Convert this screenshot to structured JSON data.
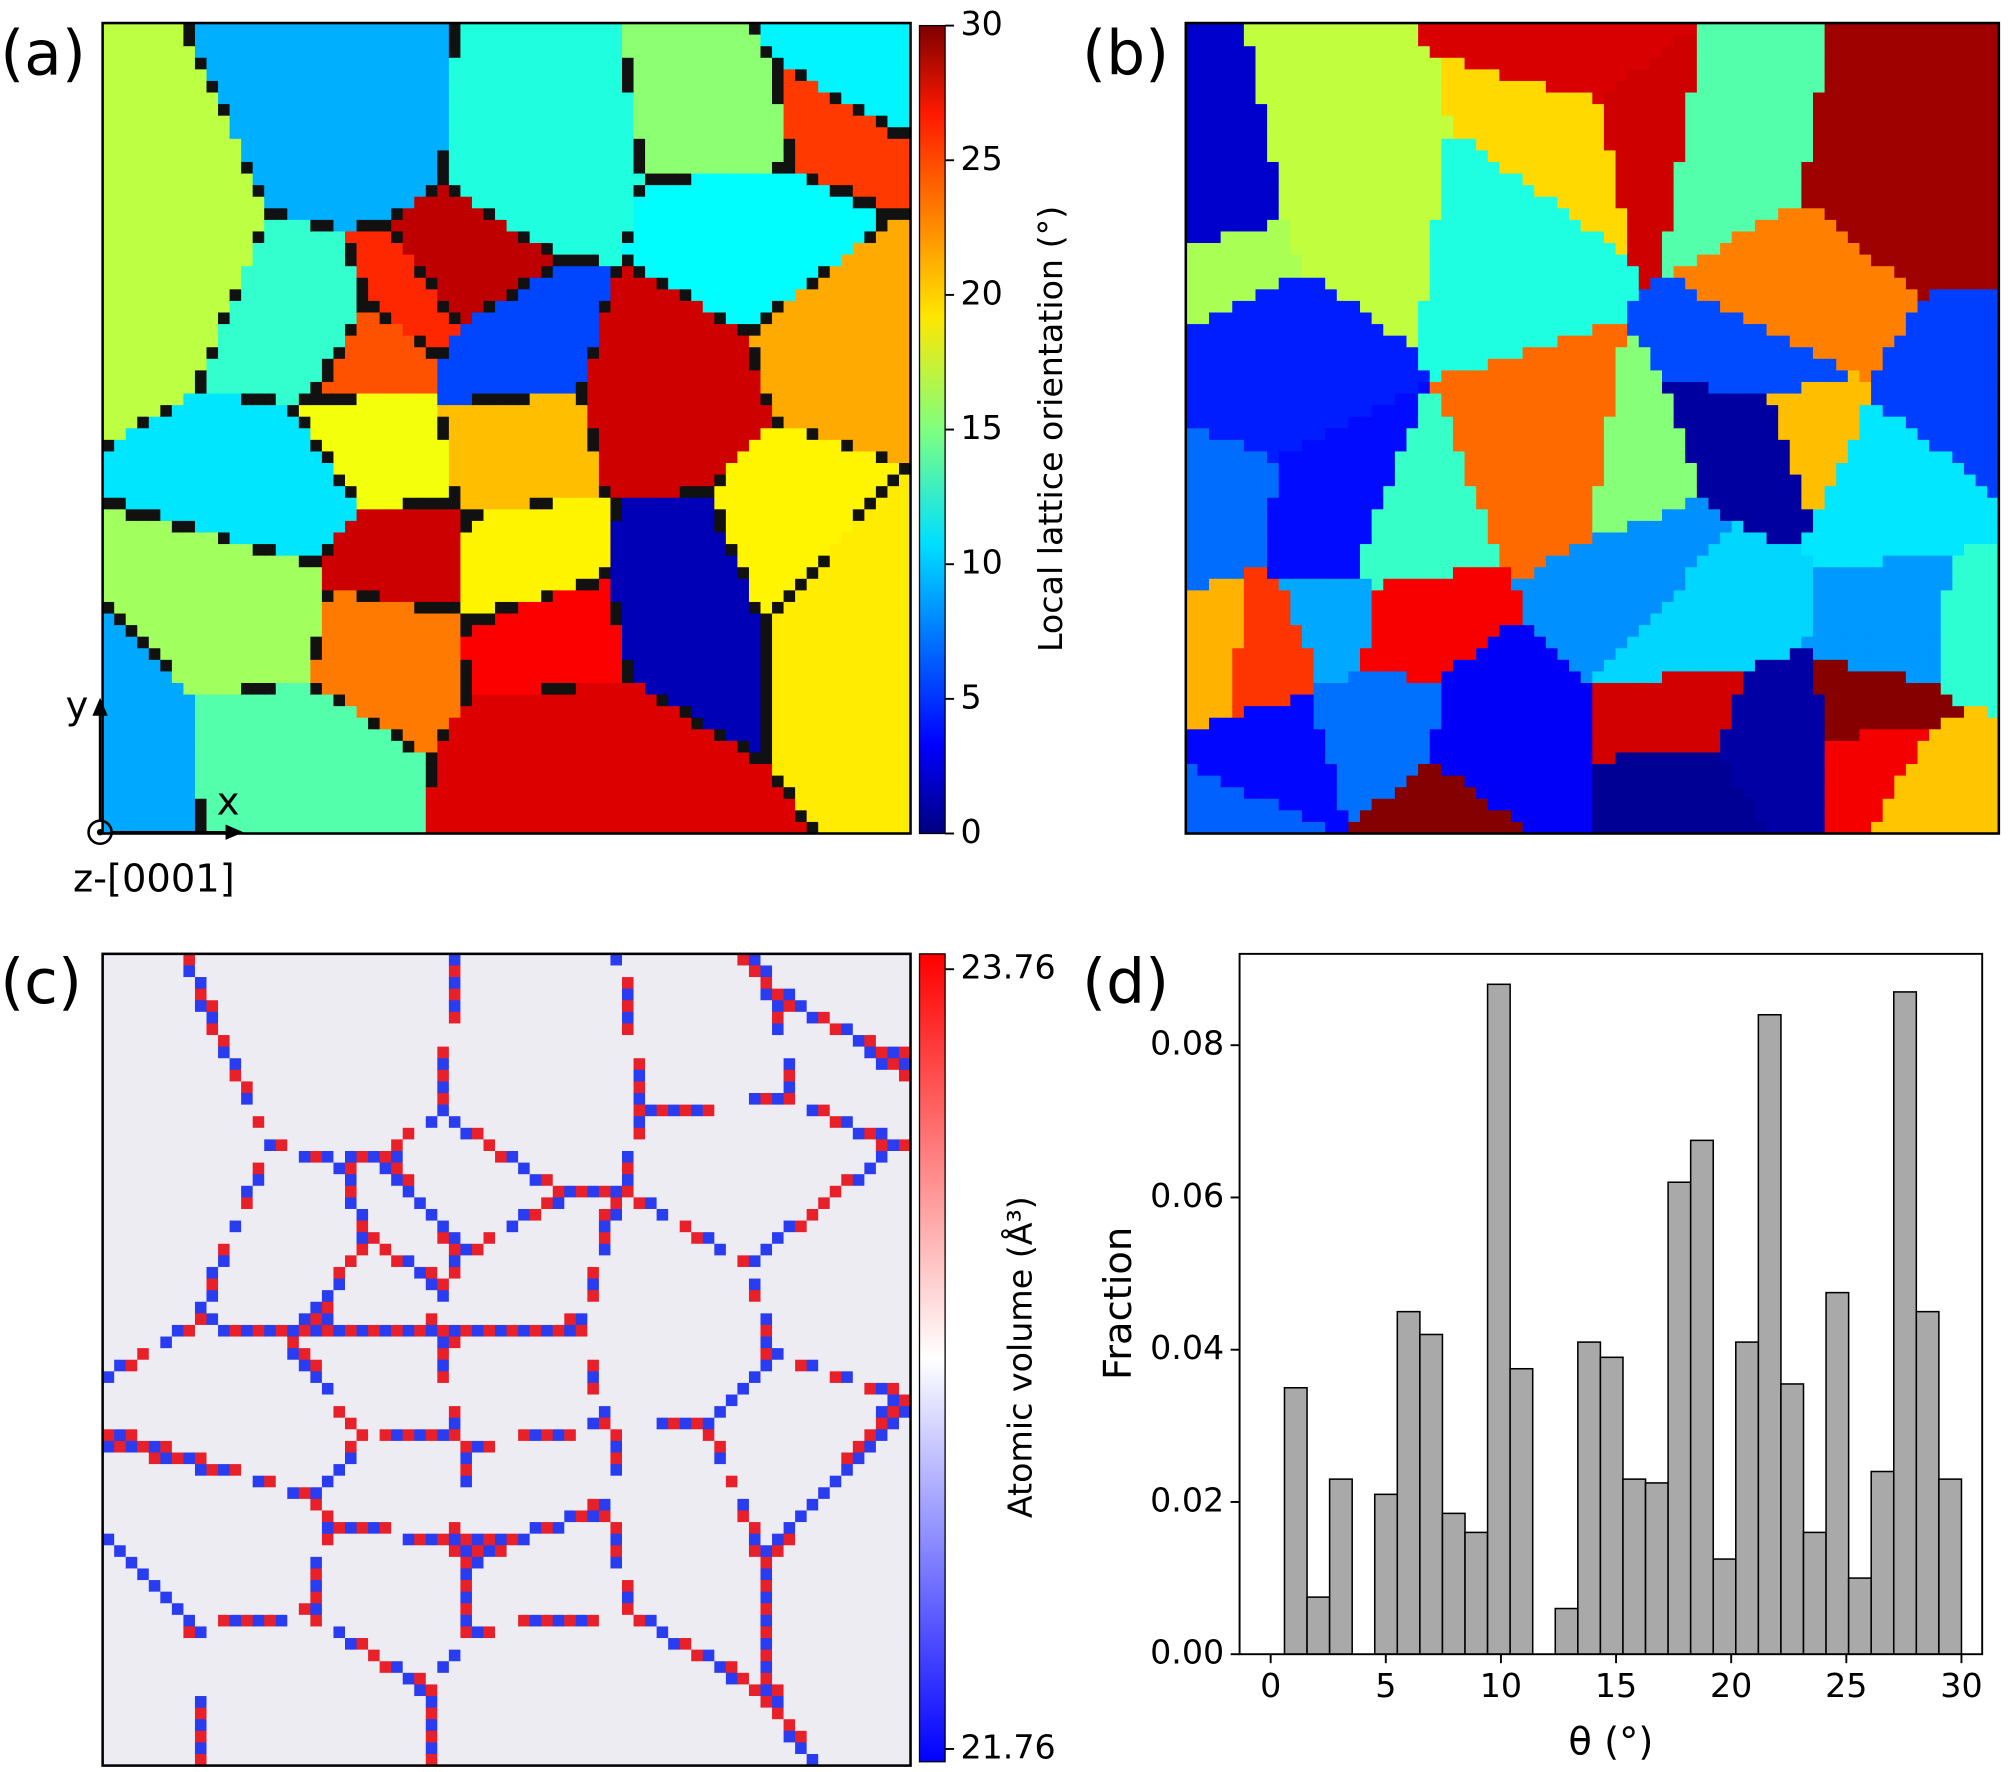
{
  "chart_data": [
    {
      "type": "orientation-map",
      "label": "(a)",
      "x_label": "x",
      "y_label": "y",
      "z_label": "z-[0001]",
      "colorbar_label": "Local lattice orientation (°)",
      "clim": [
        0,
        30
      ],
      "cticks": [
        0,
        5,
        10,
        15,
        20,
        25,
        30
      ]
    },
    {
      "type": "grain-map",
      "label": "(b)"
    },
    {
      "type": "volume-map",
      "label": "(c)",
      "colorbar_label": "Atomic volume (Å³)",
      "clim": [
        21.76,
        23.76
      ],
      "cticks": [
        21.76,
        23.76
      ]
    },
    {
      "type": "histogram",
      "label": "(d)",
      "x_label": "θ (°)",
      "y_label": "Fraction",
      "color": "#a9a9a9",
      "bins": [
        0.6,
        1.58,
        2.56,
        3.54,
        4.52,
        5.5,
        6.48,
        7.46,
        8.44,
        9.42,
        10.4,
        11.38,
        12.36,
        13.34,
        14.32,
        15.3,
        16.28,
        17.26,
        18.24,
        19.22,
        20.2,
        21.18,
        22.16,
        23.14,
        24.12,
        25.1,
        26.08,
        27.06,
        28.04,
        29.02,
        30
      ],
      "values": [
        0.035,
        0.0075,
        0.023,
        0,
        0.021,
        0.045,
        0.042,
        0.0185,
        0.016,
        0.088,
        0.0375,
        0,
        0.006,
        0.041,
        0.039,
        0.023,
        0.0225,
        0.062,
        0.0675,
        0.0125,
        0.041,
        0.084,
        0.0355,
        0.016,
        0.0475,
        0.01,
        0.024,
        0.087,
        0.045,
        0.023
      ],
      "xlim": [
        -1.35,
        30.9
      ],
      "ylim": [
        0,
        0.092
      ],
      "xticks": [
        0,
        5,
        10,
        15,
        20,
        25,
        30
      ],
      "yticks": [
        {
          "value": 0,
          "label": "0.00"
        },
        {
          "value": 0.02,
          "label": "0.02"
        },
        {
          "value": 0.04,
          "label": "0.04"
        },
        {
          "value": 0.06,
          "label": "0.06"
        },
        {
          "value": 0.08,
          "label": "0.08"
        }
      ]
    }
  ]
}
